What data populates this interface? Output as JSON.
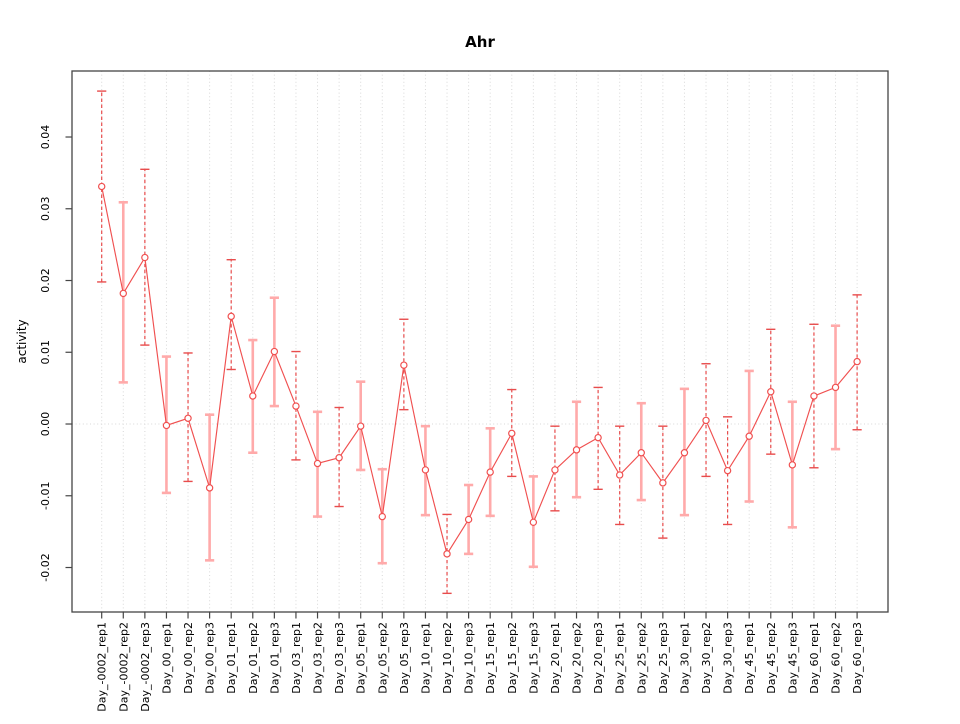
{
  "chart_data": {
    "type": "line",
    "title": "Ahr",
    "xlabel": "",
    "ylabel": "activity",
    "categories": [
      "Day_-0002_rep1",
      "Day_-0002_rep2",
      "Day_-0002_rep3",
      "Day_00_rep1",
      "Day_00_rep2",
      "Day_00_rep3",
      "Day_01_rep1",
      "Day_01_rep2",
      "Day_01_rep3",
      "Day_03_rep1",
      "Day_03_rep2",
      "Day_03_rep3",
      "Day_05_rep1",
      "Day_05_rep2",
      "Day_05_rep3",
      "Day_10_rep1",
      "Day_10_rep2",
      "Day_10_rep3",
      "Day_15_rep1",
      "Day_15_rep2",
      "Day_15_rep3",
      "Day_20_rep1",
      "Day_20_rep2",
      "Day_20_rep3",
      "Day_25_rep1",
      "Day_25_rep2",
      "Day_25_rep3",
      "Day_30_rep1",
      "Day_30_rep2",
      "Day_30_rep3",
      "Day_45_rep1",
      "Day_45_rep2",
      "Day_45_rep3",
      "Day_60_rep1",
      "Day_60_rep2",
      "Day_60_rep3"
    ],
    "series": [
      {
        "name": "activity",
        "values": [
          0.0331,
          0.0182,
          0.0232,
          -0.0002,
          0.0008,
          -0.0089,
          0.015,
          0.0039,
          0.0101,
          0.0025,
          -0.0055,
          -0.0047,
          -0.0003,
          -0.0129,
          0.0082,
          -0.0064,
          -0.0181,
          -0.0133,
          -0.0067,
          -0.0013,
          -0.0137,
          -0.0064,
          -0.0036,
          -0.0019,
          -0.0071,
          -0.004,
          -0.0082,
          -0.004,
          0.0005,
          -0.0065,
          -0.0017,
          0.0045,
          -0.0057,
          0.0039,
          0.0051,
          0.0087
        ],
        "error_low": [
          0.0198,
          0.0058,
          0.011,
          -0.0096,
          -0.008,
          -0.019,
          0.0076,
          -0.004,
          0.0025,
          -0.005,
          -0.0129,
          -0.0115,
          -0.0064,
          -0.0194,
          0.002,
          -0.0127,
          -0.0236,
          -0.0181,
          -0.0128,
          -0.0073,
          -0.0199,
          -0.0121,
          -0.0102,
          -0.0091,
          -0.014,
          -0.0106,
          -0.0159,
          -0.0127,
          -0.0073,
          -0.014,
          -0.0108,
          -0.0042,
          -0.0144,
          -0.0061,
          -0.0035,
          -0.0008
        ],
        "error_high": [
          0.0464,
          0.0309,
          0.0355,
          0.0094,
          0.0099,
          0.0013,
          0.0229,
          0.0117,
          0.0176,
          0.0101,
          0.0017,
          0.0023,
          0.0059,
          -0.0063,
          0.0146,
          -0.0003,
          -0.0126,
          -0.0085,
          -0.0006,
          0.0048,
          -0.0073,
          -0.0003,
          0.0031,
          0.0051,
          -0.0003,
          0.0029,
          -0.0003,
          0.0049,
          0.0084,
          0.001,
          0.0074,
          0.0132,
          0.0031,
          0.0139,
          0.0137,
          0.018
        ],
        "error_bar_styles": [
          "dashed",
          "solid",
          "dashed",
          "solid",
          "dashed",
          "solid",
          "dashed",
          "solid",
          "solid",
          "dashed",
          "solid",
          "dashed",
          "solid",
          "solid",
          "dashed",
          "solid",
          "dashed",
          "solid",
          "solid",
          "dashed",
          "solid",
          "dashed",
          "solid",
          "dashed",
          "dashed",
          "solid",
          "dashed",
          "solid",
          "dashed",
          "dashed",
          "solid",
          "dashed",
          "solid",
          "dashed",
          "solid",
          "dashed"
        ]
      }
    ],
    "yticks": {
      "values": [
        0.04,
        0.03,
        0.02,
        0.01,
        0.0,
        -0.01,
        -0.02
      ],
      "labels": [
        "0.04",
        "0.03",
        "0.02",
        "0.01",
        "0.00",
        "-0.01",
        "-0.02"
      ]
    },
    "ylim": [
      -0.0262,
      0.0492
    ],
    "grid": "vertical dotted gridline per category, dotted horizontal line at y=0",
    "legend": "none",
    "marker": "open-circle",
    "colors": {
      "line": "#f05050",
      "point": "#f05050",
      "error_bar_solid": "#ffaaaa",
      "error_bar_dashed": "#e84c4c",
      "grid": "#d8d8d8",
      "zero_line": "#d8d8d8",
      "axis_box": "#454545",
      "title": "#000000"
    }
  }
}
